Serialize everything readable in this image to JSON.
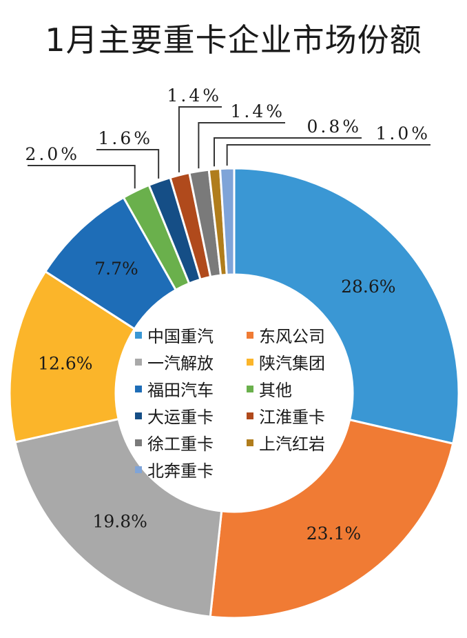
{
  "chart_data": {
    "type": "pie",
    "donut": true,
    "title": "1月主要重卡企业市场份额",
    "legend_position": "center",
    "slices": [
      {
        "name": "中国重汽",
        "value": 28.6,
        "label": "28.6%",
        "color": "#3a97d4"
      },
      {
        "name": "东风公司",
        "value": 23.1,
        "label": "23.1%",
        "color": "#f07b34"
      },
      {
        "name": "一汽解放",
        "value": 19.8,
        "label": "19.8%",
        "color": "#a9a9a9"
      },
      {
        "name": "陕汽集团",
        "value": 12.6,
        "label": "12.6%",
        "color": "#fbb52a"
      },
      {
        "name": "福田汽车",
        "value": 7.7,
        "label": "7.7%",
        "color": "#1e6db7"
      },
      {
        "name": "其他",
        "value": 2.0,
        "label": "2.0%",
        "color": "#6ab04c"
      },
      {
        "name": "大运重卡",
        "value": 1.6,
        "label": "1.6%",
        "color": "#154e86"
      },
      {
        "name": "江淮重卡",
        "value": 1.4,
        "label": "1.4%",
        "color": "#b04a1c"
      },
      {
        "name": "徐工重卡",
        "value": 1.4,
        "label": "1.4%",
        "color": "#7a7a7a"
      },
      {
        "name": "上汽红岩",
        "value": 0.8,
        "label": "0.8%",
        "color": "#b07d1c"
      },
      {
        "name": "北奔重卡",
        "value": 1.0,
        "label": "1.0%",
        "color": "#7fa4d8"
      }
    ]
  }
}
